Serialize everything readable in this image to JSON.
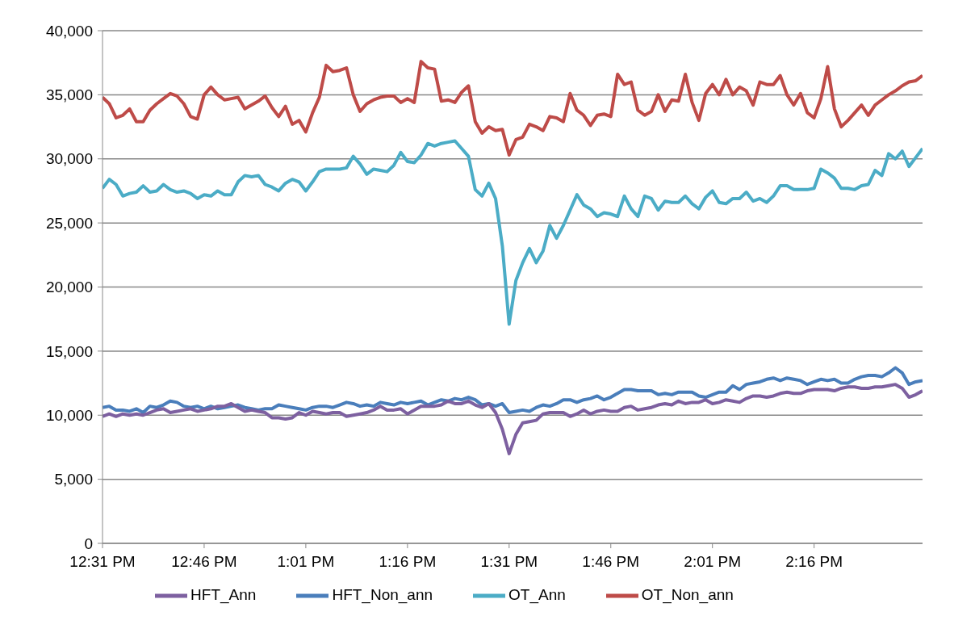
{
  "chart_data": {
    "type": "line",
    "categories": [
      "12:31 PM",
      null,
      null,
      null,
      null,
      null,
      null,
      null,
      null,
      null,
      null,
      null,
      null,
      null,
      null,
      "12:46 PM",
      null,
      null,
      null,
      null,
      null,
      null,
      null,
      null,
      null,
      null,
      null,
      null,
      null,
      null,
      "1:01 PM",
      null,
      null,
      null,
      null,
      null,
      null,
      null,
      null,
      null,
      null,
      null,
      null,
      null,
      null,
      "1:16 PM",
      null,
      null,
      null,
      null,
      null,
      null,
      null,
      null,
      null,
      null,
      null,
      null,
      null,
      null,
      "1:31 PM",
      null,
      null,
      null,
      null,
      null,
      null,
      null,
      null,
      null,
      null,
      null,
      null,
      null,
      null,
      "1:46 PM",
      null,
      null,
      null,
      null,
      null,
      null,
      null,
      null,
      null,
      null,
      null,
      null,
      null,
      null,
      "2:01 PM",
      null,
      null,
      null,
      null,
      null,
      null,
      null,
      null,
      null,
      null,
      null,
      null,
      null,
      null,
      "2:16 PM",
      null,
      null,
      null,
      null,
      null,
      null,
      null,
      null,
      null,
      null,
      null,
      null,
      null,
      null,
      null,
      null
    ],
    "series": [
      {
        "name": "HFT_Non_ann",
        "color": "#4a7ebb",
        "values": [
          10600,
          10700,
          10400,
          10400,
          10300,
          10500,
          10200,
          10700,
          10600,
          10800,
          11100,
          11000,
          10700,
          10600,
          10700,
          10500,
          10700,
          10500,
          10600,
          10700,
          10800,
          10600,
          10500,
          10400,
          10500,
          10500,
          10800,
          10700,
          10600,
          10500,
          10400,
          10600,
          10700,
          10700,
          10600,
          10800,
          11000,
          10900,
          10700,
          10800,
          10700,
          11000,
          10900,
          10800,
          11000,
          10900,
          11000,
          11100,
          10800,
          11000,
          11200,
          11100,
          11300,
          11200,
          11400,
          11200,
          10800,
          10900,
          10700,
          10900,
          10200,
          10300,
          10400,
          10300,
          10600,
          10800,
          10700,
          10900,
          11200,
          11200,
          11000,
          11200,
          11300,
          11500,
          11200,
          11400,
          11700,
          12000,
          12000,
          11900,
          11900,
          11900,
          11600,
          11700,
          11600,
          11800,
          11800,
          11800,
          11500,
          11400,
          11600,
          11800,
          11800,
          12300,
          12000,
          12400,
          12500,
          12600,
          12800,
          12900,
          12700,
          12900,
          12800,
          12700,
          12400,
          12600,
          12800,
          12700,
          12800,
          12500,
          12500,
          12800,
          13000,
          13100,
          13100,
          13000,
          13300,
          13700,
          13300,
          12400,
          12600,
          12700
        ]
      },
      {
        "name": "OT_Non_ann",
        "color": "#be4b48",
        "values": [
          34800,
          34300,
          33200,
          33400,
          33900,
          32900,
          32900,
          33800,
          34300,
          34700,
          35100,
          34900,
          34300,
          33300,
          33100,
          35000,
          35600,
          35000,
          34600,
          34700,
          34800,
          33900,
          34200,
          34500,
          34900,
          34000,
          33300,
          34100,
          32700,
          33000,
          32100,
          33600,
          34800,
          37300,
          36800,
          36900,
          37100,
          35000,
          33700,
          34300,
          34600,
          34800,
          34900,
          34900,
          34400,
          34700,
          34400,
          37600,
          37100,
          37000,
          34500,
          34600,
          34400,
          35200,
          35700,
          32900,
          32000,
          32500,
          32200,
          32300,
          30300,
          31500,
          31700,
          32700,
          32500,
          32200,
          33300,
          33200,
          32900,
          35100,
          33800,
          33400,
          32600,
          33400,
          33500,
          33300,
          36600,
          35800,
          36000,
          33800,
          33400,
          33700,
          35000,
          33700,
          34600,
          34500,
          36600,
          34400,
          33000,
          35100,
          35800,
          35000,
          36200,
          35000,
          35600,
          35300,
          34200,
          36000,
          35800,
          35800,
          36500,
          35000,
          34200,
          35100,
          33600,
          33200,
          34700,
          37200,
          33900,
          32500,
          33000,
          33600,
          34200,
          33400,
          34200,
          34600,
          35000,
          35300,
          35700,
          36000,
          36100,
          36500
        ]
      },
      {
        "name": "HFT_Ann",
        "color": "#7d60a0",
        "values": [
          9900,
          10100,
          9900,
          10100,
          10000,
          10100,
          10000,
          10200,
          10400,
          10500,
          10200,
          10300,
          10400,
          10500,
          10300,
          10400,
          10500,
          10700,
          10700,
          10900,
          10600,
          10300,
          10400,
          10300,
          10200,
          9800,
          9800,
          9700,
          9800,
          10200,
          10000,
          10300,
          10200,
          10100,
          10200,
          10200,
          9900,
          10000,
          10100,
          10200,
          10400,
          10700,
          10400,
          10400,
          10500,
          10100,
          10400,
          10700,
          10700,
          10700,
          10800,
          11100,
          10900,
          10900,
          11100,
          10800,
          10600,
          10900,
          10200,
          8900,
          7000,
          8500,
          9400,
          9500,
          9600,
          10100,
          10200,
          10200,
          10200,
          9900,
          10100,
          10400,
          10100,
          10300,
          10400,
          10300,
          10300,
          10600,
          10700,
          10400,
          10500,
          10600,
          10800,
          10900,
          10800,
          11100,
          10900,
          11000,
          11000,
          11200,
          10900,
          11000,
          11200,
          11100,
          11000,
          11300,
          11500,
          11500,
          11400,
          11500,
          11700,
          11800,
          11700,
          11700,
          11900,
          12000,
          12000,
          12000,
          11900,
          12100,
          12200,
          12200,
          12100,
          12100,
          12200,
          12200,
          12300,
          12400,
          12100,
          11400,
          11600,
          11900
        ]
      },
      {
        "name": "OT_Ann",
        "color": "#4bacc6",
        "values": [
          27700,
          28400,
          28000,
          27100,
          27300,
          27400,
          27900,
          27400,
          27500,
          28000,
          27600,
          27400,
          27500,
          27300,
          26900,
          27200,
          27100,
          27500,
          27200,
          27200,
          28200,
          28700,
          28600,
          28700,
          28000,
          27800,
          27500,
          28100,
          28400,
          28200,
          27500,
          28200,
          29000,
          29200,
          29200,
          29200,
          29300,
          30200,
          29600,
          28800,
          29200,
          29100,
          29000,
          29500,
          30500,
          29800,
          29700,
          30300,
          31200,
          31000,
          31200,
          31300,
          31400,
          30800,
          30200,
          27600,
          27100,
          28100,
          26900,
          23200,
          17100,
          20500,
          21900,
          23000,
          21900,
          22800,
          24800,
          23800,
          24800,
          26000,
          27200,
          26400,
          26100,
          25500,
          25800,
          25700,
          25500,
          27100,
          26100,
          25500,
          27100,
          26900,
          26000,
          26700,
          26600,
          26600,
          27100,
          26500,
          26100,
          27000,
          27500,
          26600,
          26500,
          26900,
          26900,
          27400,
          26700,
          26900,
          26600,
          27100,
          27900,
          27900,
          27600,
          27600,
          27600,
          27700,
          29200,
          28900,
          28500,
          27700,
          27700,
          27600,
          27900,
          28000,
          29100,
          28700,
          30400,
          30000,
          30600,
          29400,
          30100,
          30800
        ]
      }
    ],
    "ylim": [
      0,
      40000
    ],
    "yticks": [
      {
        "value": 0,
        "label": "0"
      },
      {
        "value": 5000,
        "label": "5,000"
      },
      {
        "value": 10000,
        "label": "10,000"
      },
      {
        "value": 15000,
        "label": "15,000"
      },
      {
        "value": 20000,
        "label": "20,000"
      },
      {
        "value": 25000,
        "label": "25,000"
      },
      {
        "value": 30000,
        "label": "30,000"
      },
      {
        "value": 35000,
        "label": "35,000"
      },
      {
        "value": 40000,
        "label": "40,000"
      }
    ],
    "grid": "y",
    "legend": "bottom",
    "marker": "none",
    "line_style": "solid"
  }
}
